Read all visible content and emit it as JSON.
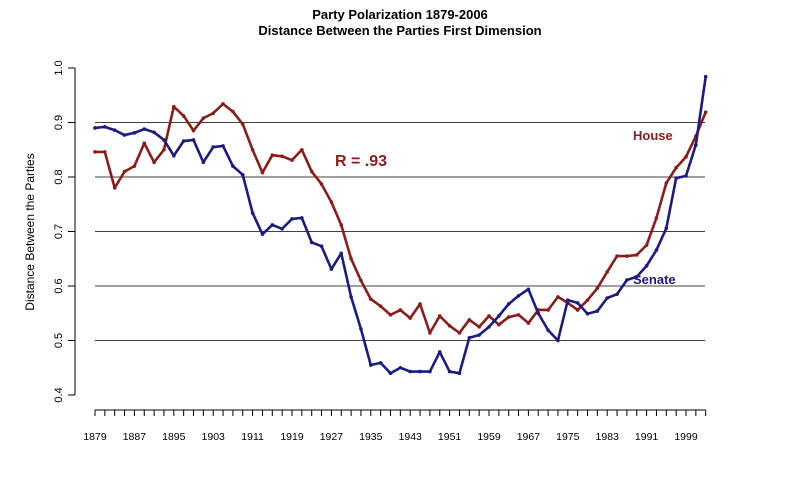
{
  "chart_data": {
    "type": "line",
    "title": "Party Polarization 1879-2006",
    "subtitle": "Distance Between the Parties First Dimension",
    "xlabel": "",
    "ylabel": "Distance Between the Parties",
    "ylim": [
      0.4,
      1.0
    ],
    "yticks": [
      "0.4",
      "0.5",
      "0.6",
      "0.7",
      "0.8",
      "0.9",
      "1.0"
    ],
    "xticks": [
      "1879",
      "1887",
      "1895",
      "1903",
      "1911",
      "1919",
      "1927",
      "1935",
      "1943",
      "1951",
      "1959",
      "1967",
      "1975",
      "1983",
      "1991",
      "1999"
    ],
    "grid": "horizontal",
    "annotation": "R = .93",
    "x": [
      1879,
      1881,
      1883,
      1885,
      1887,
      1889,
      1891,
      1893,
      1895,
      1897,
      1899,
      1901,
      1903,
      1905,
      1907,
      1909,
      1911,
      1913,
      1915,
      1917,
      1919,
      1921,
      1923,
      1925,
      1927,
      1929,
      1931,
      1933,
      1935,
      1937,
      1939,
      1941,
      1943,
      1945,
      1947,
      1949,
      1951,
      1953,
      1955,
      1957,
      1959,
      1961,
      1963,
      1965,
      1967,
      1969,
      1971,
      1973,
      1975,
      1977,
      1979,
      1981,
      1983,
      1985,
      1987,
      1989,
      1991,
      1993,
      1995,
      1997,
      1999,
      2001,
      2003
    ],
    "series": [
      {
        "name": "House",
        "color": "#8b1c1c",
        "values": [
          0.846,
          0.846,
          0.78,
          0.81,
          0.82,
          0.862,
          0.827,
          0.85,
          0.929,
          0.912,
          0.885,
          0.908,
          0.917,
          0.934,
          0.92,
          0.897,
          0.85,
          0.808,
          0.84,
          0.838,
          0.831,
          0.85,
          0.81,
          0.787,
          0.754,
          0.712,
          0.65,
          0.61,
          0.576,
          0.563,
          0.547,
          0.556,
          0.541,
          0.567,
          0.514,
          0.545,
          0.527,
          0.514,
          0.538,
          0.525,
          0.545,
          0.529,
          0.543,
          0.547,
          0.532,
          0.556,
          0.556,
          0.58,
          0.569,
          0.556,
          0.574,
          0.596,
          0.626,
          0.655,
          0.655,
          0.657,
          0.675,
          0.725,
          0.789,
          0.817,
          0.837,
          0.875,
          0.919
        ]
      },
      {
        "name": "Senate",
        "color": "#1c1c80",
        "values": [
          0.89,
          0.892,
          0.886,
          0.877,
          0.881,
          0.888,
          0.882,
          0.868,
          0.839,
          0.866,
          0.868,
          0.827,
          0.855,
          0.857,
          0.82,
          0.804,
          0.734,
          0.695,
          0.712,
          0.705,
          0.723,
          0.725,
          0.68,
          0.673,
          0.631,
          0.66,
          0.58,
          0.521,
          0.455,
          0.459,
          0.44,
          0.45,
          0.443,
          0.443,
          0.443,
          0.479,
          0.443,
          0.44,
          0.505,
          0.51,
          0.525,
          0.545,
          0.567,
          0.582,
          0.594,
          0.55,
          0.519,
          0.5,
          0.574,
          0.569,
          0.549,
          0.554,
          0.578,
          0.585,
          0.611,
          0.617,
          0.637,
          0.666,
          0.706,
          0.798,
          0.802,
          0.859,
          0.984
        ]
      }
    ]
  }
}
